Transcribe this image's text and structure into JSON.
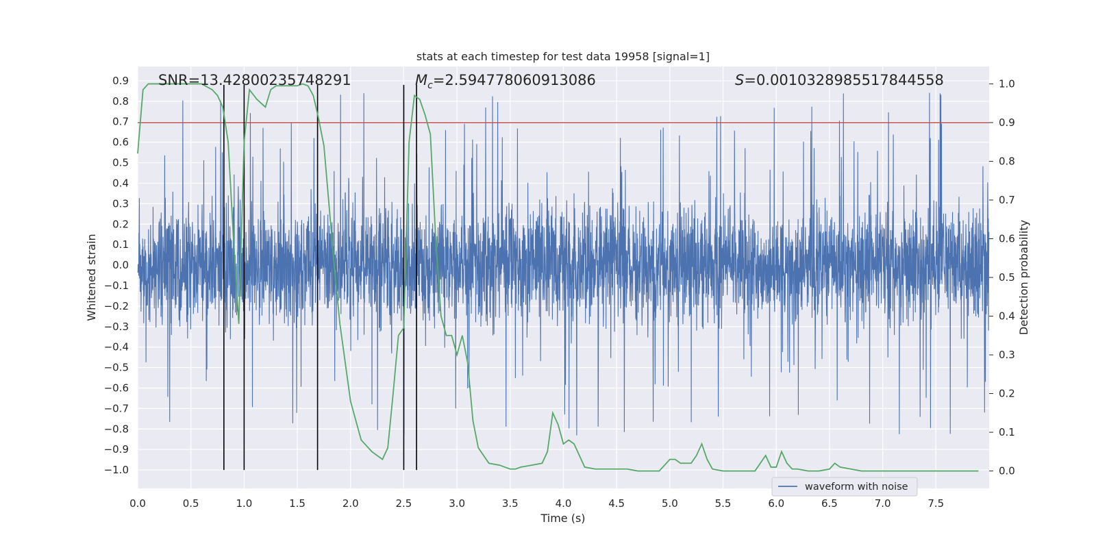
{
  "chart_data": {
    "type": "line",
    "title": "stats at each timestep for test data 19958 [signal=1]",
    "xlabel": "Time (s)",
    "ylabel": "Whitened strain",
    "ylabel_right": "Detection probability",
    "xlim": [
      0.0,
      8.0
    ],
    "ylim": [
      -1.09,
      0.97
    ],
    "ylim_right": [
      -0.045,
      1.045
    ],
    "x_ticks": [
      "0.0",
      "0.5",
      "1.0",
      "1.5",
      "2.0",
      "2.5",
      "3.0",
      "3.5",
      "4.0",
      "4.5",
      "5.0",
      "5.5",
      "6.0",
      "6.5",
      "7.0",
      "7.5"
    ],
    "x_tick_values": [
      0,
      0.5,
      1,
      1.5,
      2,
      2.5,
      3,
      3.5,
      4,
      4.5,
      5,
      5.5,
      6,
      6.5,
      7,
      7.5
    ],
    "y_ticks": [
      "0.9",
      "0.8",
      "0.7",
      "0.6",
      "0.5",
      "0.4",
      "0.3",
      "0.2",
      "0.1",
      "0.0",
      "−0.1",
      "−0.2",
      "−0.3",
      "−0.4",
      "−0.5",
      "−0.6",
      "−0.7",
      "−0.8",
      "−0.9",
      "−1.0"
    ],
    "y_tick_values": [
      0.9,
      0.8,
      0.7,
      0.6,
      0.5,
      0.4,
      0.3,
      0.2,
      0.1,
      0.0,
      -0.1,
      -0.2,
      -0.3,
      -0.4,
      -0.5,
      -0.6,
      -0.7,
      -0.8,
      -0.9,
      -1.0
    ],
    "y2_ticks": [
      "1.0",
      "0.9",
      "0.8",
      "0.7",
      "0.6",
      "0.5",
      "0.4",
      "0.3",
      "0.2",
      "0.1",
      "0.0"
    ],
    "y2_tick_values": [
      1.0,
      0.9,
      0.8,
      0.7,
      0.6,
      0.5,
      0.4,
      0.3,
      0.2,
      0.1,
      0.0
    ],
    "stats": {
      "snr_label": "SNR=13.42800235748291",
      "mc_symbol": "M",
      "mc_sub": "c",
      "mc_value": "=2.594778060913086",
      "s_symbol": "S",
      "s_value": "=0.0010328985517844558"
    },
    "threshold": {
      "value": 0.9,
      "axis": "right",
      "color": "#c44e52"
    },
    "vertical_markers": {
      "x": [
        0.81,
        1.0,
        1.69,
        2.5,
        2.62
      ],
      "y_top": 0.88,
      "y_bottom": -1.0
    },
    "series": [
      {
        "name": "waveform with noise",
        "color": "#4c72b0",
        "axis": "left",
        "description_values": "dense noise, typical band ±0.3, spikes to about ±0.9"
      },
      {
        "name": "detection probability",
        "color": "#55a868",
        "axis": "right",
        "x": [
          0.0,
          0.05,
          0.1,
          0.2,
          0.3,
          0.4,
          0.5,
          0.6,
          0.7,
          0.75,
          0.8,
          0.85,
          0.9,
          0.95,
          1.0,
          1.05,
          1.12,
          1.2,
          1.25,
          1.3,
          1.4,
          1.5,
          1.55,
          1.6,
          1.65,
          1.7,
          1.75,
          1.8,
          1.85,
          1.9,
          1.95,
          2.0,
          2.1,
          2.2,
          2.3,
          2.35,
          2.4,
          2.45,
          2.5,
          2.55,
          2.6,
          2.65,
          2.7,
          2.75,
          2.8,
          2.85,
          2.9,
          2.95,
          3.0,
          3.05,
          3.1,
          3.15,
          3.2,
          3.3,
          3.4,
          3.45,
          3.5,
          3.55,
          3.6,
          3.7,
          3.8,
          3.85,
          3.9,
          3.95,
          4.0,
          4.05,
          4.1,
          4.15,
          4.2,
          4.3,
          4.4,
          4.5,
          4.6,
          4.7,
          4.8,
          4.9,
          5.0,
          5.05,
          5.1,
          5.2,
          5.25,
          5.3,
          5.35,
          5.4,
          5.5,
          5.6,
          5.7,
          5.8,
          5.85,
          5.9,
          5.95,
          6.0,
          6.05,
          6.1,
          6.15,
          6.2,
          6.3,
          6.4,
          6.5,
          6.55,
          6.6,
          6.7,
          6.8,
          6.9,
          7.0,
          7.1,
          7.2,
          7.3,
          7.4,
          7.5,
          7.6,
          7.7,
          7.8,
          7.9
        ],
        "values": [
          0.82,
          0.985,
          1.0,
          1.0,
          1.0,
          1.0,
          1.0,
          1.0,
          0.985,
          0.97,
          0.94,
          0.85,
          0.6,
          0.38,
          0.85,
          0.985,
          0.96,
          0.94,
          0.985,
          0.995,
          0.995,
          0.995,
          1.0,
          0.995,
          0.97,
          0.91,
          0.84,
          0.68,
          0.52,
          0.38,
          0.28,
          0.18,
          0.08,
          0.05,
          0.03,
          0.06,
          0.2,
          0.35,
          0.37,
          0.85,
          0.97,
          0.96,
          0.92,
          0.87,
          0.6,
          0.4,
          0.35,
          0.35,
          0.3,
          0.35,
          0.28,
          0.13,
          0.06,
          0.02,
          0.015,
          0.01,
          0.005,
          0.005,
          0.01,
          0.015,
          0.02,
          0.05,
          0.15,
          0.12,
          0.07,
          0.08,
          0.07,
          0.04,
          0.01,
          0.005,
          0.005,
          0.005,
          0.005,
          0.0,
          0.0,
          0.0,
          0.03,
          0.03,
          0.02,
          0.02,
          0.04,
          0.07,
          0.03,
          0.005,
          0.0,
          0.0,
          0.0,
          0.0,
          0.02,
          0.04,
          0.01,
          0.01,
          0.05,
          0.02,
          0.005,
          0.005,
          0.0,
          0.0,
          0.005,
          0.02,
          0.01,
          0.005,
          0.0,
          0.0,
          0.0,
          0.0,
          0.0,
          0.0,
          0.0,
          0.0,
          0.0,
          0.0,
          0.0,
          0.0
        ]
      }
    ],
    "legend": {
      "label": "waveform with noise",
      "placement": "lower-right"
    }
  }
}
